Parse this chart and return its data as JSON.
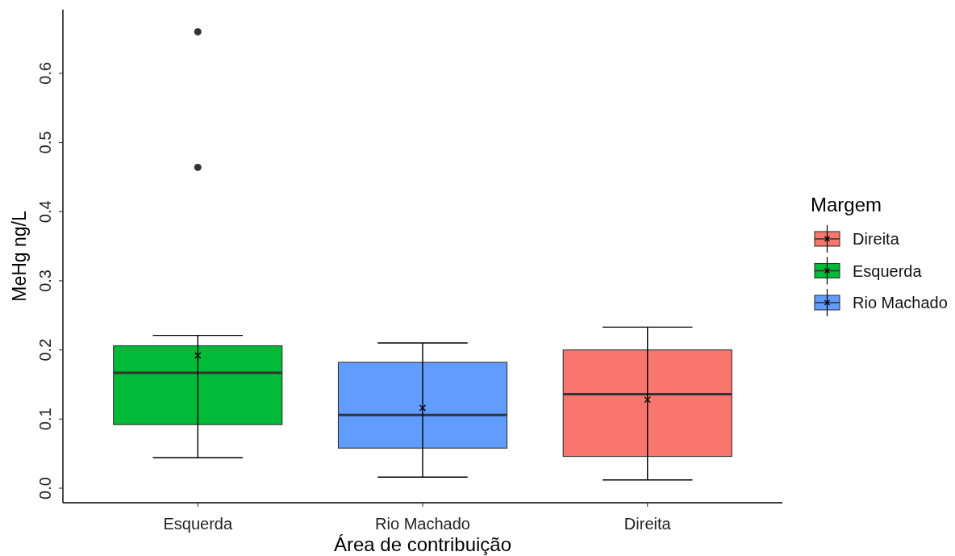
{
  "chart_data": {
    "type": "box",
    "xlabel": "Área de contribuição",
    "ylabel": "MeHg ng/L",
    "legend_title": "Margem",
    "legend": "right",
    "categories": [
      "Esquerda",
      "Rio Machado",
      "Direita"
    ],
    "ylim": [
      -0.021,
      0.692
    ],
    "yticks": [
      {
        "value": 0,
        "label": "0.0"
      },
      0.1,
      0.2,
      0.3,
      0.4,
      0.5,
      0.6
    ],
    "series": [
      {
        "name": "Direita",
        "color": "#f8766d",
        "boxes": [
          null,
          null,
          {
            "low": 0.012,
            "q1": 0.046,
            "median": 0.136,
            "q3": 0.2,
            "high": 0.233,
            "mean": 0.128
          }
        ]
      },
      {
        "name": "Esquerda",
        "color": "#00ba38",
        "boxes": [
          {
            "low": 0.044,
            "q1": 0.092,
            "median": 0.167,
            "q3": 0.206,
            "high": 0.221,
            "mean": 0.192,
            "outliers": [
              0.464,
              0.66
            ]
          },
          null,
          null
        ]
      },
      {
        "name": "Rio Machado",
        "color": "#619cff",
        "boxes": [
          null,
          {
            "low": 0.016,
            "q1": 0.058,
            "median": 0.106,
            "q3": 0.182,
            "high": 0.21,
            "mean": 0.116
          },
          null
        ]
      }
    ]
  }
}
